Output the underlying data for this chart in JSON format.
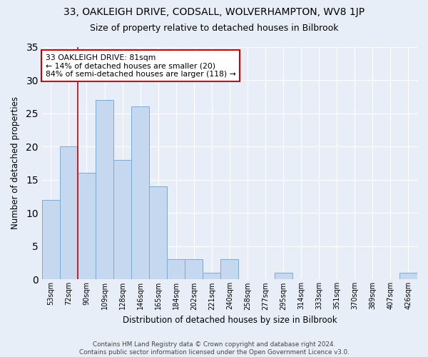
{
  "title": "33, OAKLEIGH DRIVE, CODSALL, WOLVERHAMPTON, WV8 1JP",
  "subtitle": "Size of property relative to detached houses in Bilbrook",
  "xlabel": "Distribution of detached houses by size in Bilbrook",
  "ylabel": "Number of detached properties",
  "bar_labels": [
    "53sqm",
    "72sqm",
    "90sqm",
    "109sqm",
    "128sqm",
    "146sqm",
    "165sqm",
    "184sqm",
    "202sqm",
    "221sqm",
    "240sqm",
    "258sqm",
    "277sqm",
    "295sqm",
    "314sqm",
    "333sqm",
    "351sqm",
    "370sqm",
    "389sqm",
    "407sqm",
    "426sqm"
  ],
  "bar_values": [
    12,
    20,
    16,
    27,
    18,
    26,
    14,
    3,
    3,
    1,
    3,
    0,
    0,
    1,
    0,
    0,
    0,
    0,
    0,
    0,
    1
  ],
  "bar_color": "#c5d8f0",
  "bar_edgecolor": "#7aaad4",
  "background_color": "#e8eef8",
  "grid_color": "#ffffff",
  "annotation_text": "33 OAKLEIGH DRIVE: 81sqm\n← 14% of detached houses are smaller (20)\n84% of semi-detached houses are larger (118) →",
  "annotation_box_edgecolor": "#cc0000",
  "red_line_x": 1.5,
  "ylim": [
    0,
    35
  ],
  "yticks": [
    0,
    5,
    10,
    15,
    20,
    25,
    30,
    35
  ],
  "footnote": "Contains HM Land Registry data © Crown copyright and database right 2024.\nContains public sector information licensed under the Open Government Licence v3.0.",
  "title_fontsize": 10,
  "subtitle_fontsize": 9
}
